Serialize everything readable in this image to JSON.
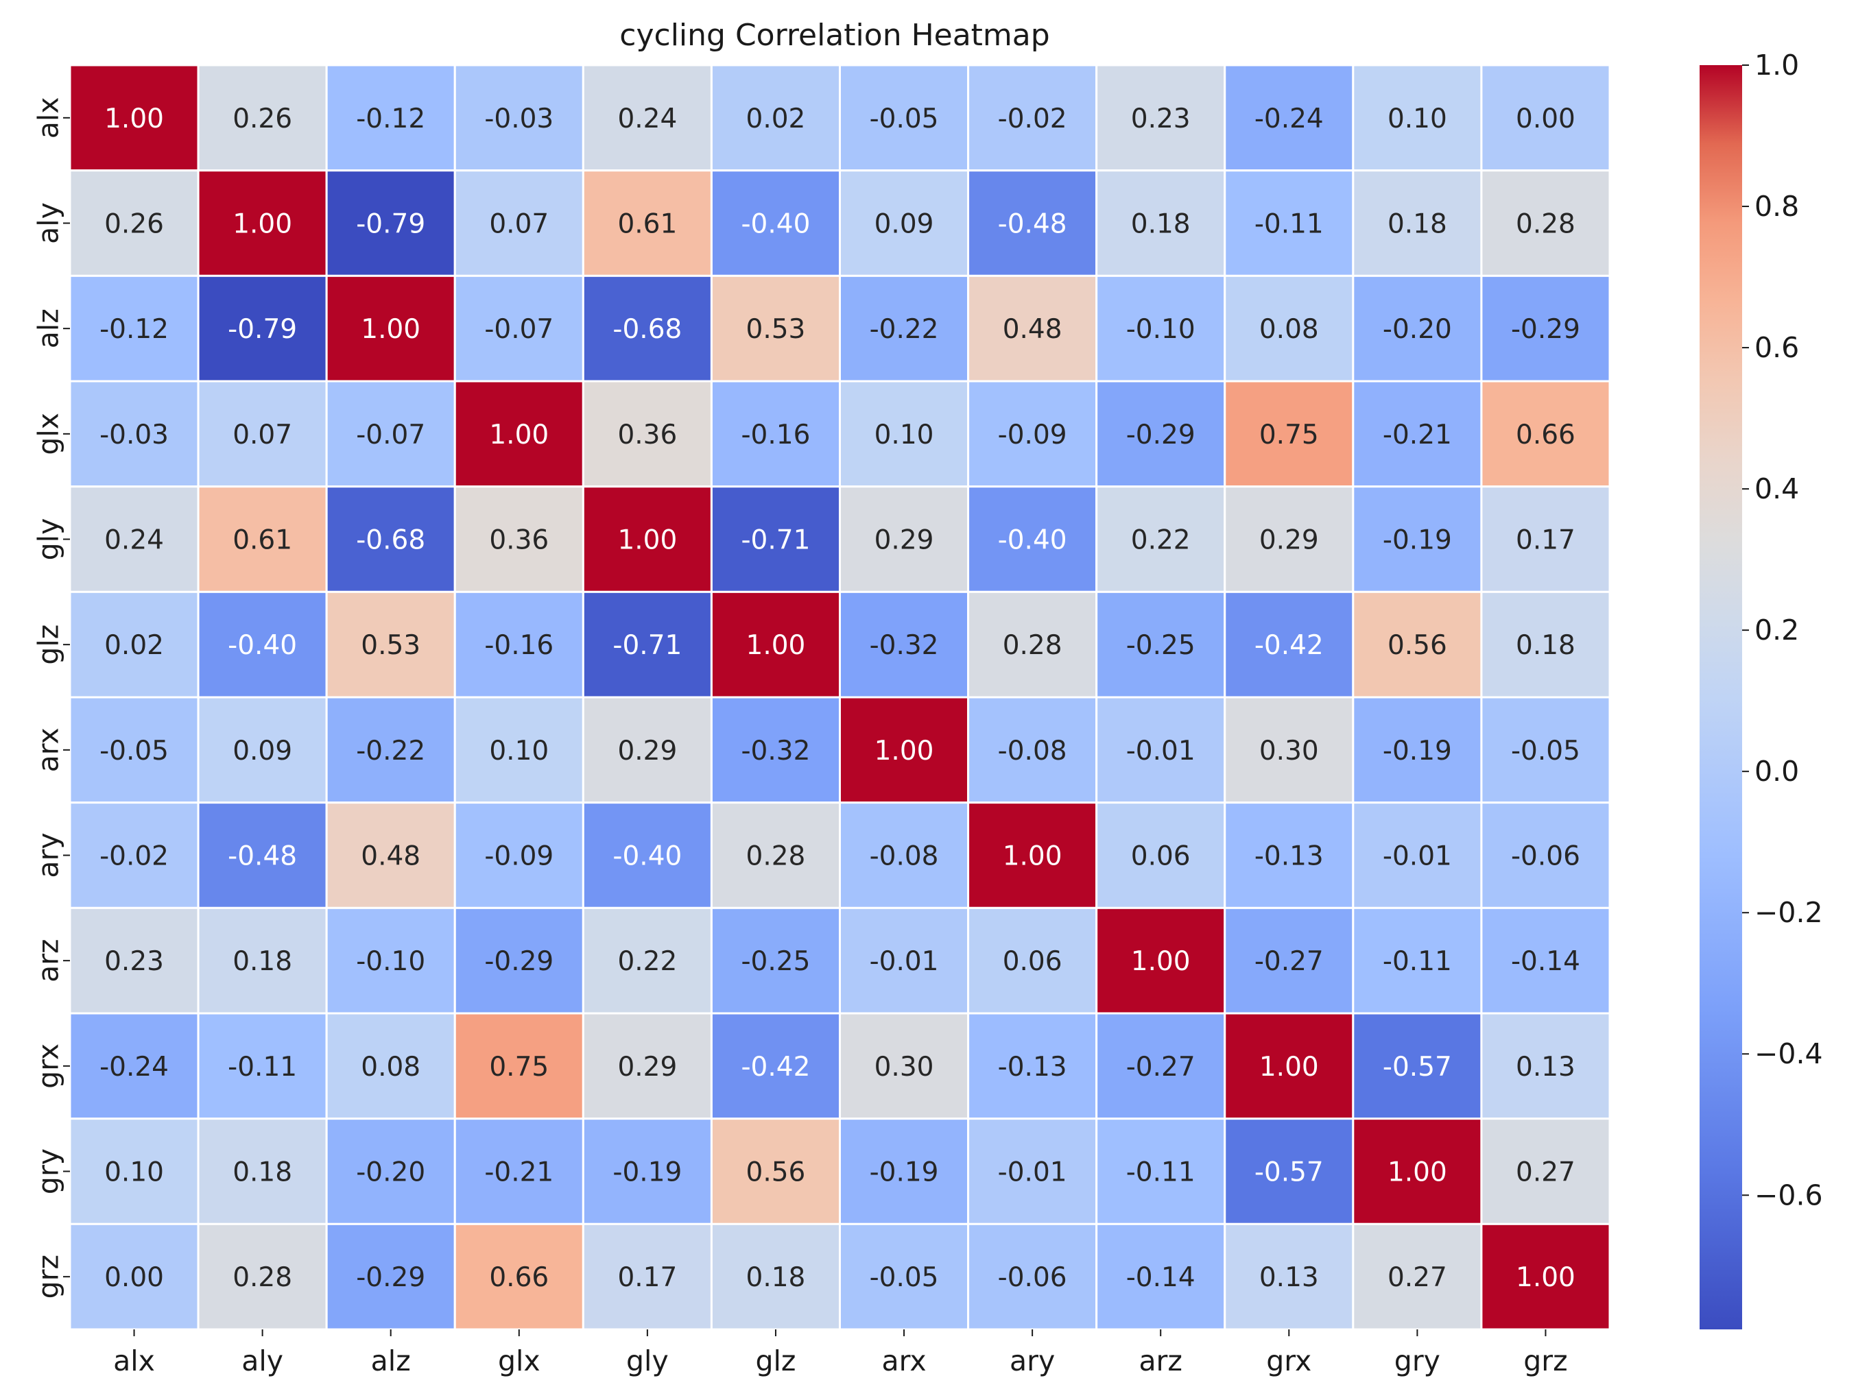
{
  "chart_data": {
    "type": "heatmap",
    "title": "cycling Correlation Heatmap",
    "xlabel": "",
    "ylabel": "",
    "x_labels": [
      "alx",
      "aly",
      "alz",
      "glx",
      "gly",
      "glz",
      "arx",
      "ary",
      "arz",
      "grx",
      "gry",
      "grz"
    ],
    "y_labels": [
      "alx",
      "aly",
      "alz",
      "glx",
      "gly",
      "glz",
      "arx",
      "ary",
      "arz",
      "grx",
      "gry",
      "grz"
    ],
    "values": [
      [
        1.0,
        0.26,
        -0.12,
        -0.03,
        0.24,
        0.02,
        -0.05,
        -0.02,
        0.23,
        -0.24,
        0.1,
        0.0
      ],
      [
        0.26,
        1.0,
        -0.79,
        0.07,
        0.61,
        -0.4,
        0.09,
        -0.48,
        0.18,
        -0.11,
        0.18,
        0.28
      ],
      [
        -0.12,
        -0.79,
        1.0,
        -0.07,
        -0.68,
        0.53,
        -0.22,
        0.48,
        -0.1,
        0.08,
        -0.2,
        -0.29
      ],
      [
        -0.03,
        0.07,
        -0.07,
        1.0,
        0.36,
        -0.16,
        0.1,
        -0.09,
        -0.29,
        0.75,
        -0.21,
        0.66
      ],
      [
        0.24,
        0.61,
        -0.68,
        0.36,
        1.0,
        -0.71,
        0.29,
        -0.4,
        0.22,
        0.29,
        -0.19,
        0.17
      ],
      [
        0.02,
        -0.4,
        0.53,
        -0.16,
        -0.71,
        1.0,
        -0.32,
        0.28,
        -0.25,
        -0.42,
        0.56,
        0.18
      ],
      [
        -0.05,
        0.09,
        -0.22,
        0.1,
        0.29,
        -0.32,
        1.0,
        -0.08,
        -0.01,
        0.3,
        -0.19,
        -0.05
      ],
      [
        -0.02,
        -0.48,
        0.48,
        -0.09,
        -0.4,
        0.28,
        -0.08,
        1.0,
        0.06,
        -0.13,
        -0.01,
        -0.06
      ],
      [
        0.23,
        0.18,
        -0.1,
        -0.29,
        0.22,
        -0.25,
        -0.01,
        0.06,
        1.0,
        -0.27,
        -0.11,
        -0.14
      ],
      [
        -0.24,
        -0.11,
        0.08,
        0.75,
        0.29,
        -0.42,
        0.3,
        -0.13,
        -0.27,
        1.0,
        -0.57,
        0.13
      ],
      [
        0.1,
        0.18,
        -0.2,
        -0.21,
        -0.19,
        0.56,
        -0.19,
        -0.01,
        -0.11,
        -0.57,
        1.0,
        0.27
      ],
      [
        0.0,
        0.28,
        -0.29,
        0.66,
        0.17,
        0.18,
        -0.05,
        -0.06,
        -0.14,
        0.13,
        0.27,
        1.0
      ]
    ],
    "colormap": "coolwarm",
    "vmin": -0.79,
    "vmax": 1.0,
    "colorbar_ticks": [
      1.0,
      0.8,
      0.6,
      0.4,
      0.2,
      0.0,
      -0.2,
      -0.4,
      -0.6
    ],
    "colorbar_tick_labels": [
      "1.0",
      "0.8",
      "0.6",
      "0.4",
      "0.2",
      "0.0",
      "−0.2",
      "−0.4",
      "−0.6"
    ],
    "annotations": true,
    "annotation_format": "0.00",
    "grid": false,
    "cell_border_color": "#ffffff"
  }
}
